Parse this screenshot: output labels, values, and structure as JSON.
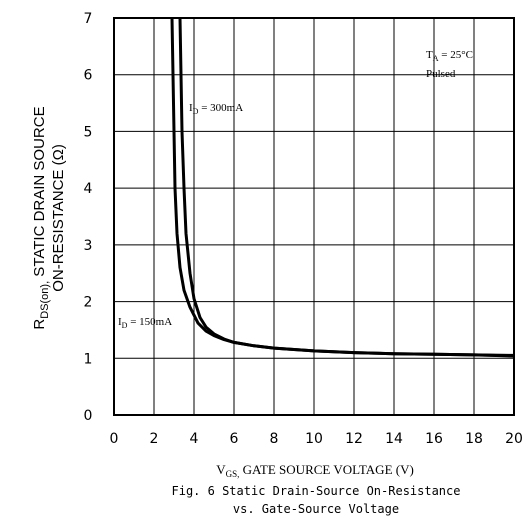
{
  "chart_data": {
    "type": "line",
    "xlabel_symbol": "V",
    "xlabel_sub": "GS,",
    "xlabel_text": " GATE SOURCE VOLTAGE (V)",
    "ylabel_symbol": "R",
    "ylabel_sub": "DS(on),",
    "ylabel_line1": " STATIC DRAIN SOURCE",
    "ylabel_line2": "ON-RESISTANCE (Ω)",
    "caption_line1": "Fig. 6 Static Drain-Source On-Resistance",
    "caption_line2": "vs. Gate-Source Voltage",
    "xlim": [
      0,
      20
    ],
    "ylim": [
      0,
      7
    ],
    "xticks": [
      "0",
      "2",
      "4",
      "6",
      "8",
      "10",
      "12",
      "14",
      "16",
      "18",
      "20"
    ],
    "yticks": [
      "0",
      "1",
      "2",
      "3",
      "4",
      "5",
      "6",
      "7"
    ],
    "grid": true,
    "conditions": {
      "ta_symbol": "T",
      "ta_sub": "A",
      "ta_value": " = 25°C",
      "pulsed": "Pulsed"
    },
    "series": [
      {
        "name": "ID = 300mA",
        "label_symbol": "I",
        "label_sub": "D",
        "label_value": " = 300mA",
        "x": [
          3.3,
          3.35,
          3.4,
          3.5,
          3.6,
          3.8,
          4.0,
          4.3,
          4.6,
          5.0,
          5.5,
          6.0,
          7.0,
          8.0,
          10.0,
          12.0,
          14.0,
          16.0,
          18.0,
          20.0
        ],
        "y": [
          7.0,
          6.0,
          5.0,
          4.0,
          3.2,
          2.5,
          2.05,
          1.72,
          1.55,
          1.43,
          1.34,
          1.28,
          1.22,
          1.18,
          1.13,
          1.1,
          1.08,
          1.07,
          1.06,
          1.05
        ]
      },
      {
        "name": "ID = 150mA",
        "label_symbol": "I",
        "label_sub": "D",
        "label_value": " = 150mA",
        "x": [
          2.9,
          2.95,
          3.0,
          3.05,
          3.15,
          3.3,
          3.5,
          3.8,
          4.2,
          4.6,
          5.0,
          5.5,
          6.0,
          7.0,
          8.0,
          10.0,
          12.0,
          14.0,
          16.0,
          18.0,
          20.0
        ],
        "y": [
          7.0,
          6.0,
          5.0,
          4.0,
          3.2,
          2.6,
          2.2,
          1.9,
          1.62,
          1.48,
          1.4,
          1.33,
          1.28,
          1.22,
          1.18,
          1.13,
          1.1,
          1.08,
          1.07,
          1.06,
          1.04
        ]
      }
    ]
  }
}
